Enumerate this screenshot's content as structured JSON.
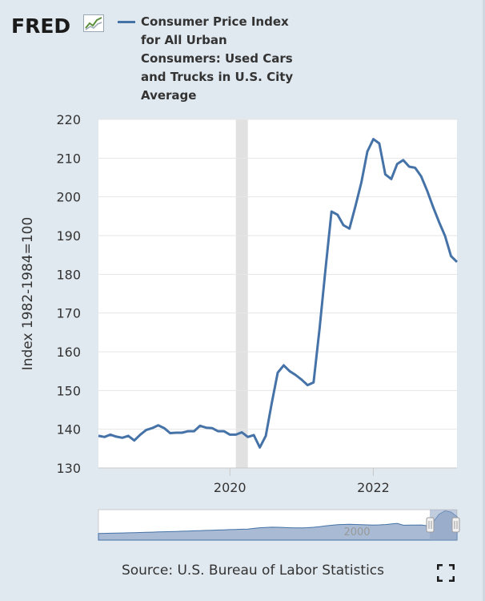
{
  "logo": {
    "text": "FRED",
    "icon": "fred-chart-logo-icon"
  },
  "legend": {
    "label": "Consumer Price Index for All Urban Consumers: Used Cars and Trucks in U.S. City Average",
    "color": "#4572a7"
  },
  "source": "Source: U.S. Bureau of Labor Statistics",
  "fullscreen_icon": "fullscreen-icon",
  "colors": {
    "background": "#e1e9f0",
    "plot_background": "#ffffff",
    "series": "#4572a7",
    "recession": "#e1e1e1",
    "navigator_fill": "#a9bbd4",
    "navigator_mask": "#8ea4c4"
  },
  "chart_data": {
    "type": "line",
    "title": "Consumer Price Index for All Urban Consumers: Used Cars and Trucks in U.S. City Average",
    "xlabel": "",
    "ylabel": "Index 1982-1984=100",
    "ylim": [
      130,
      220
    ],
    "yticks": [
      130,
      140,
      150,
      160,
      170,
      180,
      190,
      200,
      210,
      220
    ],
    "xrange": [
      2018.1667,
      2023.1667
    ],
    "xticks": [
      {
        "value": 2020,
        "label": "2020"
      },
      {
        "value": 2022,
        "label": "2022"
      }
    ],
    "recession": [
      2020.0833,
      2020.25
    ],
    "grid": true,
    "legend_position": "top",
    "series": [
      {
        "name": "Consumer Price Index for All Urban Consumers: Used Cars and Trucks in U.S. City Average",
        "frequency": "monthly",
        "start": "2018-03",
        "values": [
          138.3,
          138.0,
          138.6,
          138.1,
          137.8,
          138.3,
          137.1,
          138.6,
          139.8,
          140.3,
          141.0,
          140.3,
          139.0,
          139.1,
          139.1,
          139.5,
          139.5,
          140.9,
          140.4,
          140.3,
          139.5,
          139.5,
          138.6,
          138.6,
          139.2,
          138.0,
          138.5,
          135.3,
          138.3,
          146.7,
          154.6,
          156.5,
          155.0,
          154.0,
          152.8,
          151.4,
          152.1,
          166.0,
          181.3,
          196.2,
          195.4,
          192.7,
          191.8,
          197.6,
          203.7,
          211.7,
          214.9,
          213.8,
          205.8,
          204.6,
          208.5,
          209.5,
          207.8,
          207.5,
          205.3,
          201.6,
          197.4,
          193.5,
          189.9,
          184.7,
          183.2
        ],
        "color": "#4572a7"
      }
    ],
    "navigator": {
      "xlabel": "2000",
      "selected_range": [
        2018.1667,
        2023.1667
      ]
    }
  }
}
